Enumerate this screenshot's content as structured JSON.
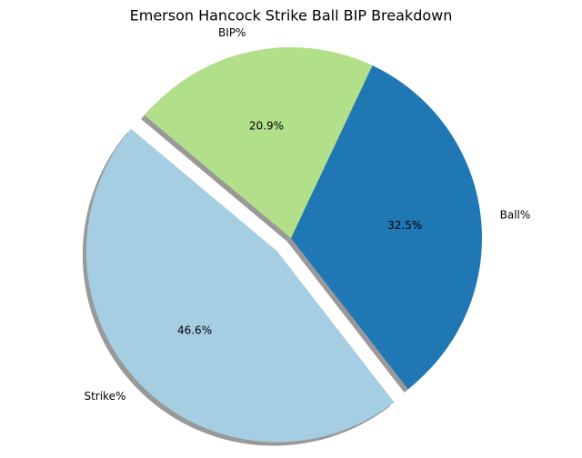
{
  "chart_data": {
    "type": "pie",
    "title": "Emerson Hancock Strike Ball BIP Breakdown",
    "categories": [
      "Strike%",
      "Ball%",
      "BIP%"
    ],
    "values": [
      46.6,
      32.5,
      20.9
    ],
    "value_labels": [
      "46.6%",
      "32.5%",
      "20.9%"
    ],
    "colors": [
      "#a6cee3",
      "#1f78b4",
      "#b2df8a"
    ],
    "startangle": 140,
    "explode": [
      0.1,
      0,
      0
    ],
    "shadow": true
  }
}
